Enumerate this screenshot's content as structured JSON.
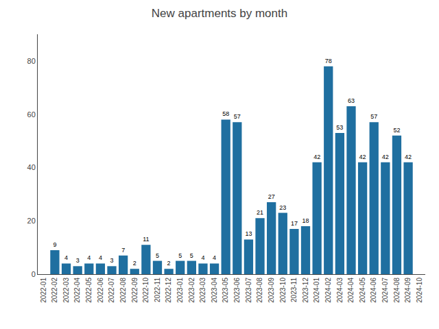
{
  "chart_data": {
    "type": "bar",
    "title": "New apartments by month",
    "categories": [
      "2022-01",
      "2022-02",
      "2022-03",
      "2022-04",
      "2022-05",
      "2022-06",
      "2022-07",
      "2022-08",
      "2022-09",
      "2022-10",
      "2022-11",
      "2022-12",
      "2023-01",
      "2023-02",
      "2023-03",
      "2023-04",
      "2023-05",
      "2023-06",
      "2023-07",
      "2023-08",
      "2023-09",
      "2023-10",
      "2023-11",
      "2023-12",
      "2024-01",
      "2024-02",
      "2024-03",
      "2024-04",
      "2024-05",
      "2024-06",
      "2024-07",
      "2024-08",
      "2024-09",
      "2024-10"
    ],
    "values": [
      0,
      9,
      4,
      3,
      4,
      4,
      3,
      7,
      2,
      11,
      5,
      2,
      5,
      5,
      4,
      4,
      58,
      57,
      13,
      21,
      27,
      23,
      17,
      18,
      42,
      78,
      53,
      63,
      42,
      57,
      42,
      52,
      42,
      0
    ],
    "value_labels": [
      null,
      "9",
      "4",
      "3",
      "4",
      "4",
      "3",
      "7",
      "2",
      "11",
      "5",
      "2",
      "5",
      "5",
      "4",
      "4",
      "58",
      "57",
      "13",
      "21",
      "27",
      "23",
      "17",
      "18",
      "42",
      "78",
      "53",
      "63",
      "42",
      "57",
      "42",
      "52",
      "42",
      null
    ],
    "data_labels": true,
    "color": "#1f6fa0",
    "ylim": [
      0,
      90
    ],
    "yticks": [
      0,
      20,
      40,
      60,
      80
    ],
    "grid": false
  }
}
